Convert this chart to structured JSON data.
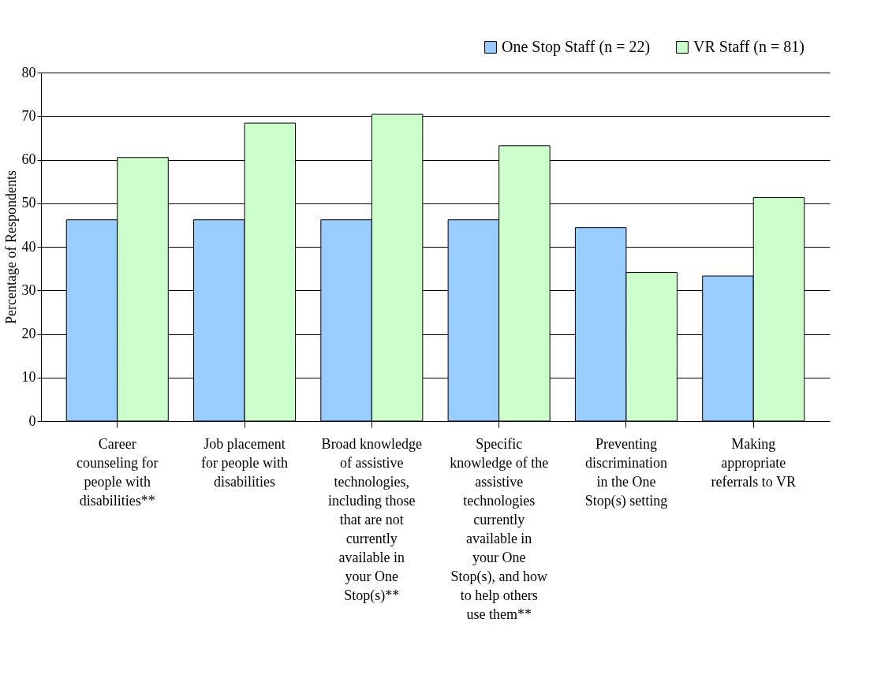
{
  "chart_data": {
    "type": "bar",
    "ylabel": "Percentage of Respondents",
    "categories": [
      "Career counseling for people with disabilities**",
      "Job placement for people with disabilities",
      "Broad knowledge of assistive technologies, including those that are not currently available in your One Stop(s)**",
      "Specific knowledge of the assistive technologies currently available in your One Stop(s), and how to help others use them**",
      "Preventing discrimination in the One Stop(s) setting",
      "Making appropriate referrals to VR"
    ],
    "series": [
      {
        "name": "One Stop Staff (n = 22)",
        "color": "#99ccff",
        "values": [
          46.2,
          46.2,
          46.2,
          46.2,
          44.4,
          33.3
        ]
      },
      {
        "name": "VR Staff (n = 81)",
        "color": "#ccffcc",
        "values": [
          60.5,
          68.4,
          70.4,
          63.2,
          34.1,
          51.3
        ]
      }
    ],
    "ylim": [
      0,
      80
    ],
    "yticks": [
      0,
      10,
      20,
      30,
      40,
      50,
      60,
      70,
      80
    ],
    "grid": "y",
    "legend": "top right"
  }
}
